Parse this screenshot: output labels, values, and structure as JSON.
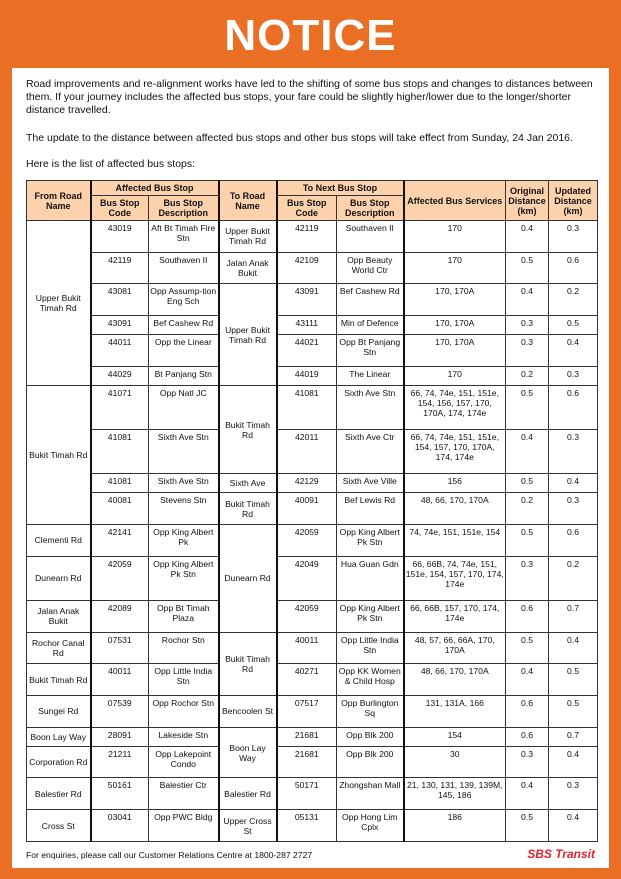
{
  "header": {
    "title": "NOTICE"
  },
  "paragraphs": [
    "Road improvements and re-alignment works have led to the shifting of some bus stops and changes to distances between them. If your journey includes the affected bus stops, your fare could be slightly higher/lower due to the longer/shorter distance travelled.",
    "The update to the distance between affected bus stops and other bus stops will take effect from Sunday, 24 Jan 2016.",
    "Here is the list of affected bus stops:"
  ],
  "table": {
    "headers": {
      "from_road": "From Road Name",
      "affected_stop": "Affected Bus Stop",
      "to_road": "To Road Name",
      "next_stop": "To Next Bus Stop",
      "services": "Affected Bus Services",
      "original": "Original Distance (km)",
      "updated": "Updated Distance (km)",
      "code": "Bus Stop Code",
      "description": "Bus Stop Description",
      "next_code": "Bus Stop Code",
      "next_description": "Bus Stop Description"
    },
    "rows": [
      {
        "from_road": "Upper Bukit Timah Rd",
        "code": "43019",
        "description": "Aft Bt Timah Fire Stn",
        "to_road": "Upper Bukit Timah Rd",
        "next_code": "42119",
        "next_description": "Southaven II",
        "services": "170",
        "original": 0.4,
        "updated": 0.3
      },
      {
        "code": "42119",
        "description": "Southaven II",
        "to_road": "Jalan Anak Bukit",
        "next_code": "42109",
        "next_description": "Opp Beauty World Ctr",
        "services": "170",
        "original": 0.5,
        "updated": 0.6
      },
      {
        "code": "43081",
        "description": "Opp Assump-tion Eng Sch",
        "to_road": "Upper Bukit Timah Rd",
        "next_code": "43091",
        "next_description": "Bef Cashew Rd",
        "services": "170, 170A",
        "original": 0.4,
        "updated": 0.2
      },
      {
        "code": "43091",
        "description": "Bef Cashew Rd",
        "next_code": "43111",
        "next_description": "Min of Defence",
        "services": "170, 170A",
        "original": 0.3,
        "updated": 0.5
      },
      {
        "code": "44011",
        "description": "Opp the Linear",
        "next_code": "44021",
        "next_description": "Opp Bt Panjang Stn",
        "services": "170, 170A",
        "original": 0.3,
        "updated": 0.4
      },
      {
        "code": "44029",
        "description": "Bt Panjang Stn",
        "next_code": "44019",
        "next_description": "The Linear",
        "services": "170",
        "original": 0.2,
        "updated": 0.3
      },
      {
        "from_road": "Bukit Timah Rd",
        "code": "41071",
        "description": "Opp Natl JC",
        "to_road": "Bukit Timah Rd",
        "next_code": "41081",
        "next_description": "Sixth Ave Stn",
        "services": "66, 74, 74e, 151, 151e, 154, 156, 157, 170, 170A, 174, 174e",
        "original": 0.5,
        "updated": 0.6
      },
      {
        "code": "41081",
        "description": "Sixth Ave Stn",
        "next_code": "42011",
        "next_description": "Sixth Ave Ctr",
        "services": "66, 74, 74e, 151, 151e, 154, 157, 170, 170A, 174, 174e",
        "original": 0.4,
        "updated": 0.3
      },
      {
        "code": "41081",
        "description": "Sixth Ave Stn",
        "to_road": "Sixth Ave",
        "next_code": "42129",
        "next_description": "Sixth Ave Ville",
        "services": "156",
        "original": 0.5,
        "updated": 0.4
      },
      {
        "code": "40081",
        "description": "Stevens Stn",
        "to_road": "Bukit Timah Rd",
        "next_code": "40091",
        "next_description": "Bef Lewis Rd",
        "services": "48, 66, 170, 170A",
        "original": 0.2,
        "updated": 0.3
      },
      {
        "from_road": "Clementi Rd",
        "code": "42141",
        "description": "Opp King Albert Pk",
        "to_road": "Dunearn Rd",
        "next_code": "42059",
        "next_description": "Opp King Albert Pk Stn",
        "services": "74, 74e, 151, 151e, 154",
        "original": 0.5,
        "updated": 0.6
      },
      {
        "from_road": "Dunearn Rd",
        "code": "42059",
        "description": "Opp King Albert Pk Stn",
        "next_code": "42049",
        "next_description": "Hua Guan Gdn",
        "services": "66, 66B, 74, 74e, 151, 151e, 154, 157, 170, 174, 174e",
        "original": 0.3,
        "updated": 0.2
      },
      {
        "from_road": "Jalan Anak Bukit",
        "code": "42089",
        "description": "Opp Bt Timah Plaza",
        "next_code": "42059",
        "next_description": "Opp King Albert Pk Stn",
        "services": "66, 66B, 157, 170, 174, 174e",
        "original": 0.6,
        "updated": 0.7
      },
      {
        "from_road": "Rochor Canal Rd",
        "code": "07531",
        "description": "Rochor Stn",
        "to_road": "Bukit Timah Rd",
        "next_code": "40011",
        "next_description": "Opp Little India Stn",
        "services": "48, 57, 66, 66A, 170, 170A",
        "original": 0.5,
        "updated": 0.4
      },
      {
        "from_road": "Bukit Timah Rd",
        "code": "40011",
        "description": "Opp Little India Stn",
        "next_code": "40271",
        "next_description": "Opp KK Women & Child Hosp",
        "services": "48, 66, 170, 170A",
        "original": 0.4,
        "updated": 0.5
      },
      {
        "from_road": "Sungei Rd",
        "code": "07539",
        "description": "Opp Rochor Stn",
        "to_road": "Bencoolen St",
        "next_code": "07517",
        "next_description": "Opp Burlington Sq",
        "services": "131, 131A, 166",
        "original": 0.6,
        "updated": 0.5
      },
      {
        "from_road": "Boon Lay Way",
        "code": "28091",
        "description": "Lakeside Stn",
        "to_road": "Boon Lay Way",
        "next_code": "21681",
        "next_description": "Opp Blk 200",
        "services": "154",
        "original": 0.6,
        "updated": 0.7
      },
      {
        "from_road": "Corporation Rd",
        "code": "21211",
        "description": "Opp Lakepoint Condo",
        "next_code": "21681",
        "next_description": "Opp Blk 200",
        "services": "30",
        "original": 0.3,
        "updated": 0.4
      },
      {
        "from_road": "Balestier Rd",
        "code": "50161",
        "description": "Balestier Ctr",
        "to_road": "Balestier Rd",
        "next_code": "50171",
        "next_description": "Zhongshan Mall",
        "services": "21, 130, 131, 139, 139M, 145, 186",
        "original": 0.4,
        "updated": 0.3
      },
      {
        "from_road": "Cross St",
        "code": "03041",
        "description": "Opp PWC Bldg",
        "to_road": "Upper Cross St",
        "next_code": "05131",
        "next_description": "Opp Hong Lim Cplx",
        "services": "186",
        "original": 0.5,
        "updated": 0.4
      }
    ]
  },
  "footer": {
    "enquiry": "For enquiries, please call our Customer Relations Centre at 1800-287 2727",
    "logo": "SBS Transit"
  }
}
